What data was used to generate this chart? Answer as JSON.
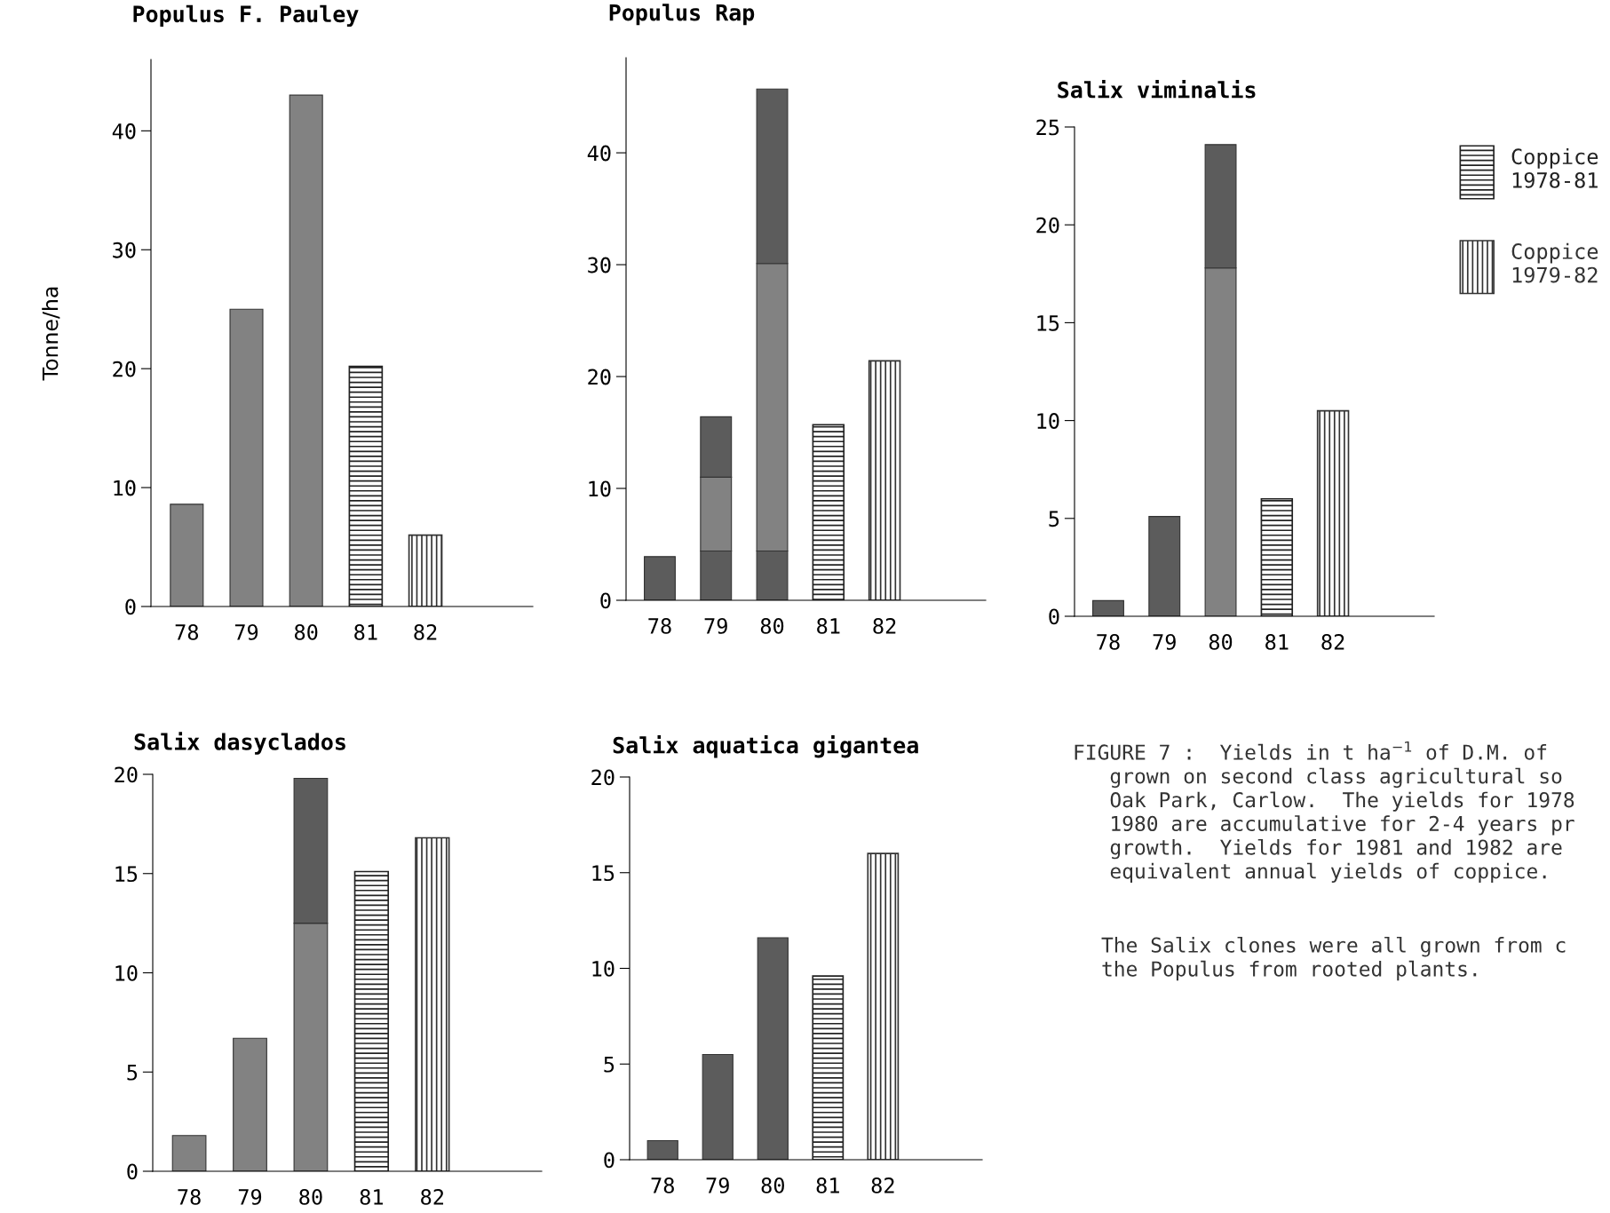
{
  "chart_data": [
    {
      "type": "bar",
      "stacked": true,
      "title": "Populus F. Pauley",
      "ylabel": "Tonne/ha",
      "categories": [
        "78",
        "79",
        "80",
        "81",
        "82"
      ],
      "ylim": [
        0,
        46
      ],
      "yticks": [
        0,
        10,
        20,
        30,
        40
      ],
      "grid": false,
      "legend": false,
      "series": [
        {
          "color": "#828282",
          "values": [
            8.6,
            25,
            43,
            null,
            null
          ]
        },
        {
          "color": "#222222",
          "values": [
            null,
            null,
            null,
            20.2,
            null
          ]
        },
        {
          "color": "#333333",
          "values": [
            null,
            null,
            null,
            null,
            6
          ]
        }
      ]
    },
    {
      "type": "bar",
      "stacked": true,
      "title": "Populus Rap",
      "categories": [
        "78",
        "79",
        "80",
        "81",
        "82"
      ],
      "ylim": [
        0,
        48.5
      ],
      "yticks": [
        0,
        10,
        20,
        30,
        40
      ],
      "grid": false,
      "legend": false,
      "series": [
        {
          "color": "#5c5c5c",
          "values": [
            3.9,
            4.4,
            4.4,
            null,
            null
          ]
        },
        {
          "color": "#828282",
          "values": [
            null,
            6.6,
            25.7,
            null,
            null
          ]
        },
        {
          "color": "#5c5c5c",
          "values": [
            null,
            5.4,
            15.6,
            null,
            null
          ]
        },
        {
          "color": "#222222",
          "values": [
            null,
            null,
            null,
            15.7,
            null
          ]
        },
        {
          "color": "#333333",
          "values": [
            null,
            null,
            null,
            null,
            21.4
          ]
        }
      ]
    },
    {
      "type": "bar",
      "stacked": true,
      "title": "Salix viminalis",
      "categories": [
        "78",
        "79",
        "80",
        "81",
        "82"
      ],
      "ylim": [
        0,
        25
      ],
      "yticks": [
        0,
        5,
        10,
        15,
        20,
        25
      ],
      "grid": false,
      "legend": "right",
      "series": [
        {
          "color": "#5c5c5c",
          "values": [
            0.8,
            5.1,
            null,
            null,
            null
          ]
        },
        {
          "color": "#828282",
          "values": [
            null,
            null,
            17.8,
            null,
            null
          ]
        },
        {
          "color": "#5c5c5c",
          "values": [
            null,
            null,
            6.3,
            null,
            null
          ]
        },
        {
          "name": "Coppice\n1978-81",
          "color": "#222222",
          "values": [
            null,
            null,
            null,
            6.0,
            null
          ]
        },
        {
          "name": "Coppice\n1979-82",
          "color": "#333333",
          "values": [
            null,
            null,
            null,
            null,
            10.5
          ]
        }
      ]
    },
    {
      "type": "bar",
      "stacked": true,
      "title": "Salix dasyclados",
      "categories": [
        "78",
        "79",
        "80",
        "81",
        "82"
      ],
      "ylim": [
        0,
        20
      ],
      "yticks": [
        0,
        5,
        10,
        15,
        20
      ],
      "grid": false,
      "legend": false,
      "series": [
        {
          "color": "#828282",
          "values": [
            1.8,
            6.7,
            12.5,
            null,
            null
          ]
        },
        {
          "color": "#5c5c5c",
          "values": [
            null,
            null,
            7.3,
            null,
            null
          ]
        },
        {
          "color": "#222222",
          "values": [
            null,
            null,
            null,
            15.1,
            null
          ]
        },
        {
          "color": "#333333",
          "values": [
            null,
            null,
            null,
            null,
            16.8
          ]
        }
      ]
    },
    {
      "type": "bar",
      "stacked": true,
      "title": "Salix aquatica gigantea",
      "categories": [
        "78",
        "79",
        "80",
        "81",
        "82"
      ],
      "ylim": [
        0,
        20
      ],
      "yticks": [
        0,
        5,
        10,
        15,
        20
      ],
      "grid": false,
      "legend": false,
      "series": [
        {
          "color": "#5c5c5c",
          "values": [
            1.0,
            5.5,
            11.6,
            null,
            null
          ]
        },
        {
          "color": "#222222",
          "values": [
            null,
            null,
            null,
            9.6,
            null
          ]
        },
        {
          "color": "#333333",
          "values": [
            null,
            null,
            null,
            null,
            16.0
          ]
        }
      ],
      "annotations": [
        "FIGURE 7 :  Yields in t ha$^{−1}$ of D.M. of\n   grown on second class agricultural so\n   Oak Park, Carlow.  The yields for 1978\n   1980 are accumulative for 2-4 years pr\n   growth.  Yields for 1981 and 1982 are\n   equivalent annual yields of coppice.",
        "The Salix clones were all grown from c\nthe Populus from rooted plants."
      ]
    }
  ]
}
